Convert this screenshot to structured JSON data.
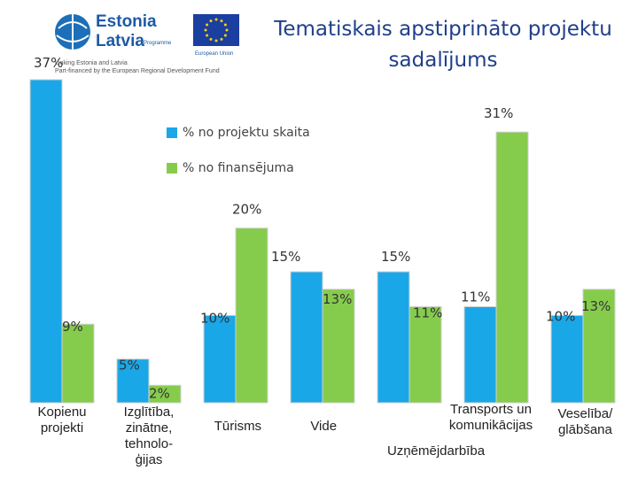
{
  "header": {
    "logo_word1": "Estonia",
    "logo_word2": "Latvia",
    "logo_sub": "Programme",
    "eu_label": "European Union",
    "fine_line1": "Linking Estonia and Latvia",
    "fine_line2": "Part-financed by the European Regional Development Fund"
  },
  "chart_data": {
    "type": "bar",
    "title": "Tematiskais apstiprināto projektu sadalījums",
    "categories": [
      [
        "Kopienu",
        "projekti"
      ],
      [
        "Izglītība,",
        "zinātne,",
        "tehnolo-",
        "ģijas"
      ],
      [
        "Tūrisms"
      ],
      [
        "Vide"
      ],
      [
        "Uzņēmējdarbība"
      ],
      [
        "Transports un",
        "komunikācijas"
      ],
      [
        "Veselība/",
        "glābšana"
      ]
    ],
    "series": [
      {
        "name": "% no projektu skaita",
        "color": "#1aa7e8",
        "values": [
          37,
          5,
          10,
          15,
          15,
          11,
          10
        ],
        "labels": [
          "37%",
          "5%",
          "10%",
          "15%",
          "15%",
          "11%",
          "10%"
        ]
      },
      {
        "name": "% no finansējuma",
        "color": "#86cc4c",
        "values": [
          9,
          2,
          20,
          13,
          11,
          31,
          13
        ],
        "labels": [
          "9%",
          "2%",
          "20%",
          "13%",
          "11%",
          "31%",
          "13%"
        ]
      }
    ],
    "ylim": [
      0,
      37
    ],
    "xlabel": "",
    "ylabel": "",
    "legend_position": "top"
  }
}
